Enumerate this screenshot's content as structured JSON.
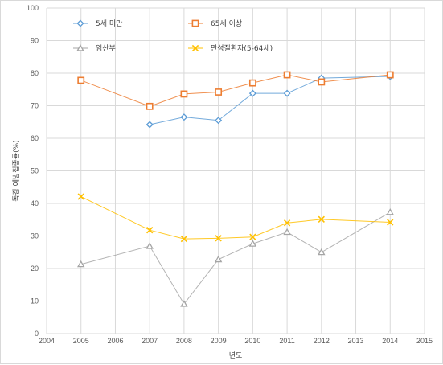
{
  "chart_data": {
    "type": "scatter",
    "title": "",
    "xlabel": "년도",
    "ylabel": "독감 예방접종률(%)",
    "xlim": [
      2004,
      2015
    ],
    "ylim": [
      0,
      100
    ],
    "x_ticks": [
      2004,
      2005,
      2006,
      2007,
      2008,
      2009,
      2010,
      2011,
      2012,
      2013,
      2014,
      2015
    ],
    "y_ticks": [
      0,
      10,
      20,
      30,
      40,
      50,
      60,
      70,
      80,
      90,
      100
    ],
    "grid": true,
    "legend_position": "top",
    "series": [
      {
        "name": "5세 미만",
        "color": "#5b9bd5",
        "marker": "diamond",
        "points": [
          [
            2007,
            64.2
          ],
          [
            2008,
            66.5
          ],
          [
            2009,
            65.5
          ],
          [
            2010,
            73.8
          ],
          [
            2011,
            73.8
          ],
          [
            2012,
            78.5
          ],
          [
            2014,
            79.0
          ]
        ]
      },
      {
        "name": "65세 이상",
        "color": "#ed7d31",
        "marker": "square",
        "points": [
          [
            2005,
            77.8
          ],
          [
            2007,
            69.8
          ],
          [
            2008,
            73.6
          ],
          [
            2009,
            74.2
          ],
          [
            2010,
            77.0
          ],
          [
            2011,
            79.5
          ],
          [
            2012,
            77.3
          ],
          [
            2014,
            79.5
          ]
        ]
      },
      {
        "name": "임산부",
        "color": "#a5a5a5",
        "marker": "triangle",
        "points": [
          [
            2005,
            21.3
          ],
          [
            2007,
            26.9
          ],
          [
            2008,
            9.1
          ],
          [
            2009,
            22.8
          ],
          [
            2010,
            27.6
          ],
          [
            2011,
            31.2
          ],
          [
            2012,
            25.0
          ],
          [
            2014,
            37.3
          ]
        ]
      },
      {
        "name": "만성질환자(5-64세)",
        "color": "#ffc000",
        "marker": "x",
        "points": [
          [
            2005,
            42.1
          ],
          [
            2007,
            31.8
          ],
          [
            2008,
            29.1
          ],
          [
            2009,
            29.3
          ],
          [
            2010,
            29.7
          ],
          [
            2011,
            34.0
          ],
          [
            2012,
            35.1
          ],
          [
            2014,
            34.2
          ]
        ]
      }
    ]
  }
}
